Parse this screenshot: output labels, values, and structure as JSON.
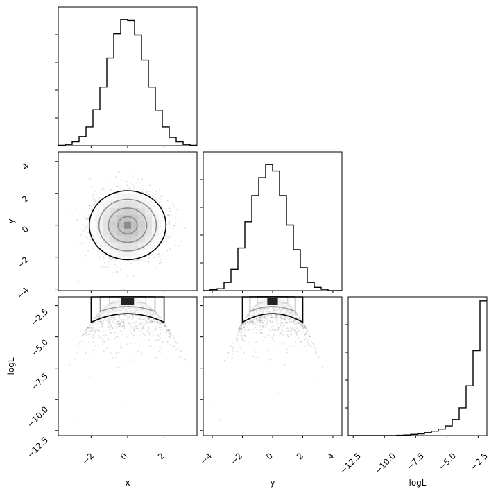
{
  "chart_data": [
    {
      "type": "histogram",
      "panel": "x",
      "xlim": [
        -3.8,
        3.8
      ],
      "bin_edges": [
        -3.8,
        -3.42,
        -3.04,
        -2.66,
        -2.28,
        -1.9,
        -1.52,
        -1.14,
        -0.76,
        -0.38,
        0.0,
        0.38,
        0.76,
        1.14,
        1.52,
        1.9,
        2.28,
        2.66,
        3.04,
        3.42,
        3.8
      ],
      "counts": [
        1,
        3,
        9,
        22,
        45,
        86,
        140,
        210,
        268,
        302,
        300,
        265,
        205,
        140,
        85,
        45,
        20,
        9,
        3,
        1
      ],
      "xticks": [
        -2,
        0,
        2
      ]
    },
    {
      "type": "scatter-contour",
      "panel": "x-y",
      "xlim": [
        -3.8,
        3.8
      ],
      "ylim": [
        -4.1,
        4.6
      ],
      "yticks": [
        -4,
        -2,
        0,
        2,
        4
      ],
      "ytick_labels": [
        "−4",
        "−2",
        "0",
        "2",
        "4"
      ],
      "sample_spread": {
        "x_std": 1.0,
        "y_std": 1.0
      },
      "contour_radii": [
        0.5,
        1.0,
        1.5,
        2.0
      ],
      "ylabel": "y"
    },
    {
      "type": "histogram",
      "panel": "y",
      "xlim": [
        -4.6,
        4.6
      ],
      "bin_edges": [
        -4.6,
        -4.14,
        -3.68,
        -3.22,
        -2.76,
        -2.3,
        -1.84,
        -1.38,
        -0.92,
        -0.46,
        0.0,
        0.46,
        0.92,
        1.38,
        1.84,
        2.3,
        2.76,
        3.22,
        3.68,
        4.14,
        4.6
      ],
      "counts": [
        0,
        3,
        6,
        25,
        65,
        130,
        210,
        290,
        345,
        385,
        365,
        290,
        200,
        125,
        70,
        25,
        10,
        4,
        0,
        0
      ],
      "xticks": [
        -4,
        -2,
        0,
        2,
        4
      ]
    },
    {
      "type": "scatter-contour",
      "panel": "x-logL",
      "xlim": [
        -3.8,
        3.8
      ],
      "ylim": [
        -12.9,
        -1.8
      ],
      "yticks": [
        -2.5,
        -5.0,
        -7.5,
        -10.0,
        -12.5
      ],
      "ytick_labels": [
        "−2.5",
        "−5.0",
        "−7.5",
        "−10.0",
        "−12.5"
      ],
      "relation": "logL = -1.84 - 0.5*(x^2 + y^2)",
      "ylabel": "logL"
    },
    {
      "type": "scatter-contour",
      "panel": "y-logL",
      "xlim": [
        -4.6,
        4.6
      ],
      "ylim": [
        -12.9,
        -1.8
      ],
      "relation": "logL = -1.84 - 0.5*(x^2 + y^2)"
    },
    {
      "type": "histogram",
      "panel": "logL",
      "xlim": [
        -12.9,
        -1.8
      ],
      "bin_edges": [
        -12.9,
        -12.345,
        -11.79,
        -11.235,
        -10.68,
        -10.125,
        -9.57,
        -9.015,
        -8.46,
        -7.905,
        -7.35,
        -6.795,
        -6.24,
        -5.685,
        -5.13,
        -4.575,
        -4.02,
        -3.465,
        -2.91,
        -2.355,
        -1.8
      ],
      "counts": [
        0,
        0,
        0,
        0,
        0,
        0,
        0,
        1,
        2,
        4,
        6,
        10,
        15,
        22,
        33,
        55,
        95,
        170,
        290,
        460
      ],
      "xticks": [
        -12.5,
        -10.0,
        -7.5,
        -5.0,
        -2.5
      ]
    }
  ],
  "labels": {
    "x": "x",
    "y_bottom": "y",
    "logL_bottom": "logL",
    "y_left": "y",
    "logL_left": "logL"
  },
  "ticks": {
    "x": [
      "−2",
      "0",
      "2"
    ],
    "y": [
      "−4",
      "−2",
      "0",
      "2",
      "4"
    ],
    "logL": [
      "−12.5",
      "−10.0",
      "−7.5",
      "−5.0",
      "−2.5"
    ]
  }
}
